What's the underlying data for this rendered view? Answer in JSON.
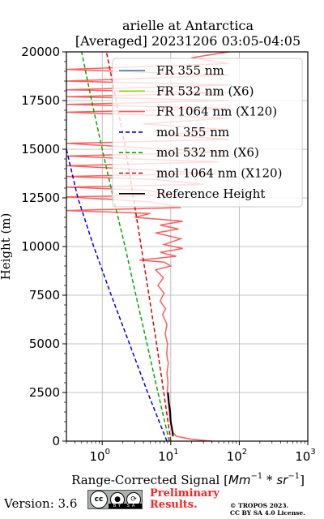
{
  "chart_data": {
    "type": "line",
    "title": "arielle at Antarctica",
    "subtitle": "[Averaged] 20231206 03:05-04:05",
    "xlabel": "Range-Corrected Signal [",
    "xlabel_unit": "Mm",
    "xlabel_unit_exp": "−1",
    "xlabel_mult": " * ",
    "xlabel_unit2": "sr",
    "xlabel_unit2_exp": "−1",
    "xlabel_close": "]",
    "ylabel": "Height (m)",
    "xscale": "log",
    "xlim": [
      0.3,
      1000
    ],
    "ylim": [
      0,
      20000
    ],
    "x_ticks": [
      {
        "value": 1,
        "base": "10",
        "exp": "0"
      },
      {
        "value": 10,
        "base": "10",
        "exp": "1"
      },
      {
        "value": 100,
        "base": "10",
        "exp": "2"
      },
      {
        "value": 1000,
        "base": "10",
        "exp": "3"
      }
    ],
    "y_ticks": [
      0,
      2500,
      5000,
      7500,
      10000,
      12500,
      15000,
      17500,
      20000
    ],
    "grid": true,
    "legend_position": "top-right",
    "series": [
      {
        "name": "FR 355 nm",
        "color": "#1f77b4",
        "style": "solid",
        "points": []
      },
      {
        "name": "FR 532 nm (X6)",
        "color": "#8fd400",
        "style": "solid",
        "points": []
      },
      {
        "name": "FR 1064 nm (X120)",
        "color": "#ff5c5c",
        "style": "solid",
        "points": [
          [
            40,
            0
          ],
          [
            20,
            100
          ],
          [
            12,
            250
          ],
          [
            10.5,
            500
          ],
          [
            9.8,
            1000
          ],
          [
            9.5,
            1500
          ],
          [
            9.2,
            2000
          ],
          [
            8.9,
            2500
          ],
          [
            9.1,
            3000
          ],
          [
            8.8,
            3500
          ],
          [
            9.2,
            4000
          ],
          [
            8.7,
            4500
          ],
          [
            9.0,
            5000
          ],
          [
            8.3,
            5500
          ],
          [
            8.8,
            6000
          ],
          [
            7.6,
            6500
          ],
          [
            8.4,
            6800
          ],
          [
            7.0,
            7200
          ],
          [
            8.0,
            7600
          ],
          [
            6.5,
            8000
          ],
          [
            7.8,
            8400
          ],
          [
            6.0,
            8800
          ],
          [
            10.0,
            9000
          ],
          [
            8.0,
            9200
          ],
          [
            3.5,
            9300
          ],
          [
            12.0,
            9500
          ],
          [
            7.0,
            9700
          ],
          [
            15.0,
            9900
          ],
          [
            8.0,
            10100
          ],
          [
            14.0,
            10400
          ],
          [
            6.0,
            10700
          ],
          [
            13.0,
            10900
          ],
          [
            7.0,
            11100
          ],
          [
            15.0,
            11300
          ],
          [
            3.0,
            11500
          ],
          [
            5.0,
            11700
          ],
          [
            0.3,
            11850
          ],
          [
            14.0,
            12000
          ],
          [
            5.0,
            12300
          ],
          [
            0.3,
            12550
          ],
          [
            12.0,
            12650
          ],
          [
            4.0,
            12900
          ],
          [
            0.3,
            13050
          ],
          [
            30.0,
            13200
          ],
          [
            6.0,
            13450
          ],
          [
            0.3,
            13600
          ],
          [
            40.0,
            13750
          ],
          [
            4.0,
            13950
          ],
          [
            0.3,
            14150
          ],
          [
            50.0,
            14350
          ],
          [
            3.0,
            14500
          ],
          [
            0.3,
            14650
          ],
          [
            60.0,
            14850
          ],
          [
            5.0,
            15050
          ],
          [
            0.3,
            15300
          ],
          [
            70.0,
            15500
          ],
          [
            8.0,
            15750
          ],
          [
            70.0,
            16000
          ],
          [
            4.0,
            16300
          ],
          [
            70.0,
            16600
          ],
          [
            0.3,
            16900
          ],
          [
            70.0,
            17100
          ],
          [
            0.3,
            17300
          ],
          [
            70.0,
            17500
          ],
          [
            0.3,
            17700
          ],
          [
            70.0,
            17900
          ],
          [
            0.3,
            18050
          ],
          [
            70.0,
            18300
          ],
          [
            0.3,
            18500
          ],
          [
            70.0,
            18800
          ],
          [
            0.3,
            19100
          ],
          [
            70.0,
            19400
          ],
          [
            20.0,
            19700
          ],
          [
            70.0,
            20000
          ]
        ]
      },
      {
        "name": "mol 355 nm",
        "color": "#0000dd",
        "style": "dashed",
        "points": [
          [
            8.8,
            0
          ],
          [
            4.6,
            2500
          ],
          [
            2.5,
            5000
          ],
          [
            1.35,
            7500
          ],
          [
            0.75,
            10000
          ],
          [
            0.44,
            12500
          ],
          [
            0.26,
            15000
          ]
        ]
      },
      {
        "name": "mol 532 nm (X6)",
        "color": "#00aa00",
        "style": "dashed",
        "points": [
          [
            9.5,
            0
          ],
          [
            6.5,
            2500
          ],
          [
            4.5,
            5000
          ],
          [
            3.1,
            7500
          ],
          [
            2.15,
            10000
          ],
          [
            1.45,
            12500
          ],
          [
            1.0,
            15000
          ],
          [
            0.7,
            17500
          ],
          [
            0.5,
            20000
          ]
        ]
      },
      {
        "name": "mol 1064 nm (X120)",
        "color": "#dd0000",
        "style": "dashed",
        "points": [
          [
            10.0,
            0
          ],
          [
            7.9,
            2500
          ],
          [
            6.2,
            5000
          ],
          [
            4.8,
            7500
          ],
          [
            3.7,
            10000
          ],
          [
            2.85,
            12500
          ],
          [
            2.2,
            15000
          ],
          [
            1.6,
            17500
          ],
          [
            1.15,
            20000
          ]
        ]
      },
      {
        "name": "Reference Height",
        "color": "#000000",
        "style": "solid",
        "points": [
          [
            10.8,
            250
          ],
          [
            10.5,
            600
          ],
          [
            10.0,
            1000
          ],
          [
            9.8,
            1500
          ],
          [
            9.4,
            2000
          ],
          [
            9.1,
            2500
          ]
        ]
      }
    ]
  },
  "footer": {
    "version": "Version: 3.6",
    "license_badge": {
      "cc": "cc",
      "by": "BY",
      "sa": "SA"
    },
    "preliminary_line1": "Preliminary",
    "preliminary_line2": "Results.",
    "copyright_line1": "© TROPOS 2023.",
    "copyright_line2": "CC BY SA 4.0 License."
  }
}
